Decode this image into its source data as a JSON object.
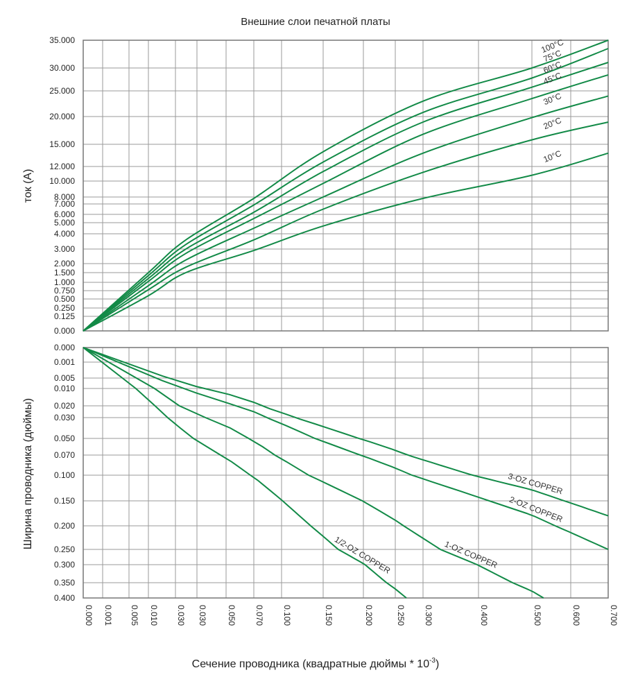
{
  "chart_data": [
    {
      "type": "line",
      "title": "Внешние слои печатной платы",
      "ylabel": "ток (А)",
      "x_ticks": [
        "0.000",
        "0.001",
        "0.005",
        "0.010",
        "0.030",
        "0.030",
        "0.050",
        "0.070",
        "0.100",
        "0.150",
        "0.200",
        "0.250",
        "0.300",
        "0.400",
        "0.500",
        "0.600",
        "0.700"
      ],
      "y_ticks": [
        "35.000",
        "30.000",
        "25.000",
        "20.000",
        "15.000",
        "12.000",
        "10.000",
        "8.000",
        "7.000",
        "6.000",
        "5.000",
        "4.000",
        "3.000",
        "2.000",
        "1.500",
        "1.000",
        "0.750",
        "0.500",
        "0.250",
        "0.125",
        "0.000"
      ],
      "ylim": [
        0,
        35
      ],
      "grid": true,
      "series": [
        {
          "name": "100°C",
          "x": [
            0,
            0.01,
            0.03,
            0.07,
            0.15,
            0.3,
            0.5,
            0.7
          ],
          "y": [
            0,
            1.5,
            3.6,
            7.8,
            14,
            23,
            30,
            35
          ]
        },
        {
          "name": "75°C",
          "x": [
            0,
            0.01,
            0.03,
            0.07,
            0.15,
            0.3,
            0.5,
            0.7
          ],
          "y": [
            0,
            1.35,
            3.3,
            6.9,
            12.6,
            20.8,
            27.8,
            33.5
          ]
        },
        {
          "name": "60°C",
          "x": [
            0,
            0.01,
            0.03,
            0.07,
            0.15,
            0.3,
            0.5,
            0.7
          ],
          "y": [
            0,
            1.2,
            3.0,
            6.2,
            11.3,
            19,
            25.8,
            31
          ]
        },
        {
          "name": "45°C",
          "x": [
            0,
            0.01,
            0.03,
            0.07,
            0.15,
            0.3,
            0.5,
            0.7
          ],
          "y": [
            0,
            1.05,
            2.7,
            5.5,
            9.7,
            16.8,
            23.5,
            28.5
          ]
        },
        {
          "name": "30°C",
          "x": [
            0,
            0.01,
            0.03,
            0.07,
            0.15,
            0.3,
            0.5,
            0.7
          ],
          "y": [
            0,
            0.9,
            2.25,
            4.5,
            8.0,
            13.8,
            19.8,
            24
          ]
        },
        {
          "name": "20°C",
          "x": [
            0,
            0.01,
            0.03,
            0.07,
            0.15,
            0.3,
            0.5,
            0.7
          ],
          "y": [
            0,
            0.78,
            1.8,
            3.6,
            6.5,
            11.2,
            15.8,
            19
          ]
        },
        {
          "name": "10°C",
          "x": [
            0,
            0.01,
            0.03,
            0.07,
            0.15,
            0.3,
            0.5,
            0.7
          ],
          "y": [
            0,
            0.6,
            1.5,
            2.9,
            4.7,
            7.8,
            10.8,
            13.8
          ]
        }
      ]
    },
    {
      "type": "line",
      "xlabel": "Сечение проводника (квадратные дюймы * 10",
      "xlabel_exponent": "-3",
      "ylabel": "Ширина проводника (дюймы)",
      "x_ticks": [
        "0.000",
        "0.001",
        "0.005",
        "0.010",
        "0.030",
        "0.030",
        "0.050",
        "0.070",
        "0.100",
        "0.150",
        "0.200",
        "0.250",
        "0.300",
        "0.400",
        "0.500",
        "0.600",
        "0.700"
      ],
      "y_ticks": [
        "0.000",
        "0.001",
        "0.005",
        "0.010",
        "0.020",
        "0.030",
        "0.050",
        "0.070",
        "0.100",
        "0.150",
        "0.200",
        "0.250",
        "0.300",
        "0.350",
        "0.400"
      ],
      "ylim": [
        0,
        0.4
      ],
      "grid": true,
      "series": [
        {
          "name": "1/2-OZ COPPER",
          "x": [
            0,
            0.27
          ],
          "y": [
            0,
            0.4
          ]
        },
        {
          "name": "1-OZ COPPER",
          "x": [
            0,
            0.53
          ],
          "y": [
            0,
            0.4
          ]
        },
        {
          "name": "2-OZ COPPER",
          "x": [
            0,
            0.7
          ],
          "y": [
            0,
            0.25
          ]
        },
        {
          "name": "3-OZ COPPER",
          "x": [
            0,
            0.7
          ],
          "y": [
            0,
            0.18
          ]
        }
      ]
    }
  ],
  "colors": {
    "line": "#128a47",
    "grid": "#9a9a9a",
    "frame": "#777777",
    "text": "#222222"
  }
}
